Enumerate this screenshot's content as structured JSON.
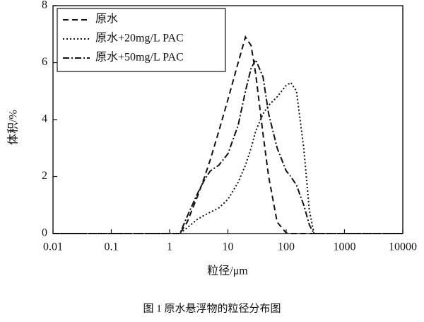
{
  "chart_data": {
    "type": "line",
    "caption": "图 1 原水悬浮物的粒径分布图",
    "xlabel": "粒径/μm",
    "ylabel": "体积/%",
    "xscale": "log",
    "x": [
      0.01,
      0.1,
      1,
      1.5,
      2,
      3,
      4,
      5,
      7,
      10,
      15,
      20,
      25,
      30,
      40,
      50,
      70,
      100,
      120,
      150,
      200,
      250,
      300,
      1000,
      10000
    ],
    "series": [
      {
        "name": "原水",
        "color": "#111111",
        "dash": "dashed",
        "values": [
          0,
          0,
          0,
          0,
          0.4,
          1.3,
          2.0,
          2.6,
          3.6,
          4.7,
          6.0,
          6.9,
          6.6,
          5.6,
          3.5,
          2.0,
          0.4,
          0.02,
          0,
          0,
          0,
          0,
          0,
          0,
          0
        ]
      },
      {
        "name": "原水+20mg/L PAC",
        "color": "#111111",
        "dash": "dotted",
        "values": [
          0,
          0,
          0,
          0,
          0.2,
          0.5,
          0.65,
          0.75,
          0.9,
          1.2,
          1.8,
          2.4,
          3.0,
          3.6,
          4.2,
          4.5,
          4.8,
          5.2,
          5.3,
          5.0,
          3.0,
          0.8,
          0,
          0,
          0
        ]
      },
      {
        "name": "原水+50mg/L PAC",
        "color": "#111111",
        "dash": "dashdot",
        "values": [
          0,
          0,
          0,
          0,
          0.6,
          1.4,
          1.9,
          2.2,
          2.4,
          2.8,
          3.8,
          5.0,
          5.8,
          6.1,
          5.5,
          4.2,
          3.0,
          2.2,
          2.0,
          1.7,
          1.0,
          0.3,
          0,
          0,
          0
        ]
      }
    ],
    "xlim": [
      0.01,
      10000
    ],
    "xticks": [
      0.01,
      0.1,
      1,
      10,
      100,
      1000,
      10000
    ],
    "ylim": [
      0,
      8
    ],
    "yticks": [
      0,
      2,
      4,
      6,
      8
    ],
    "legend": "upper left"
  }
}
